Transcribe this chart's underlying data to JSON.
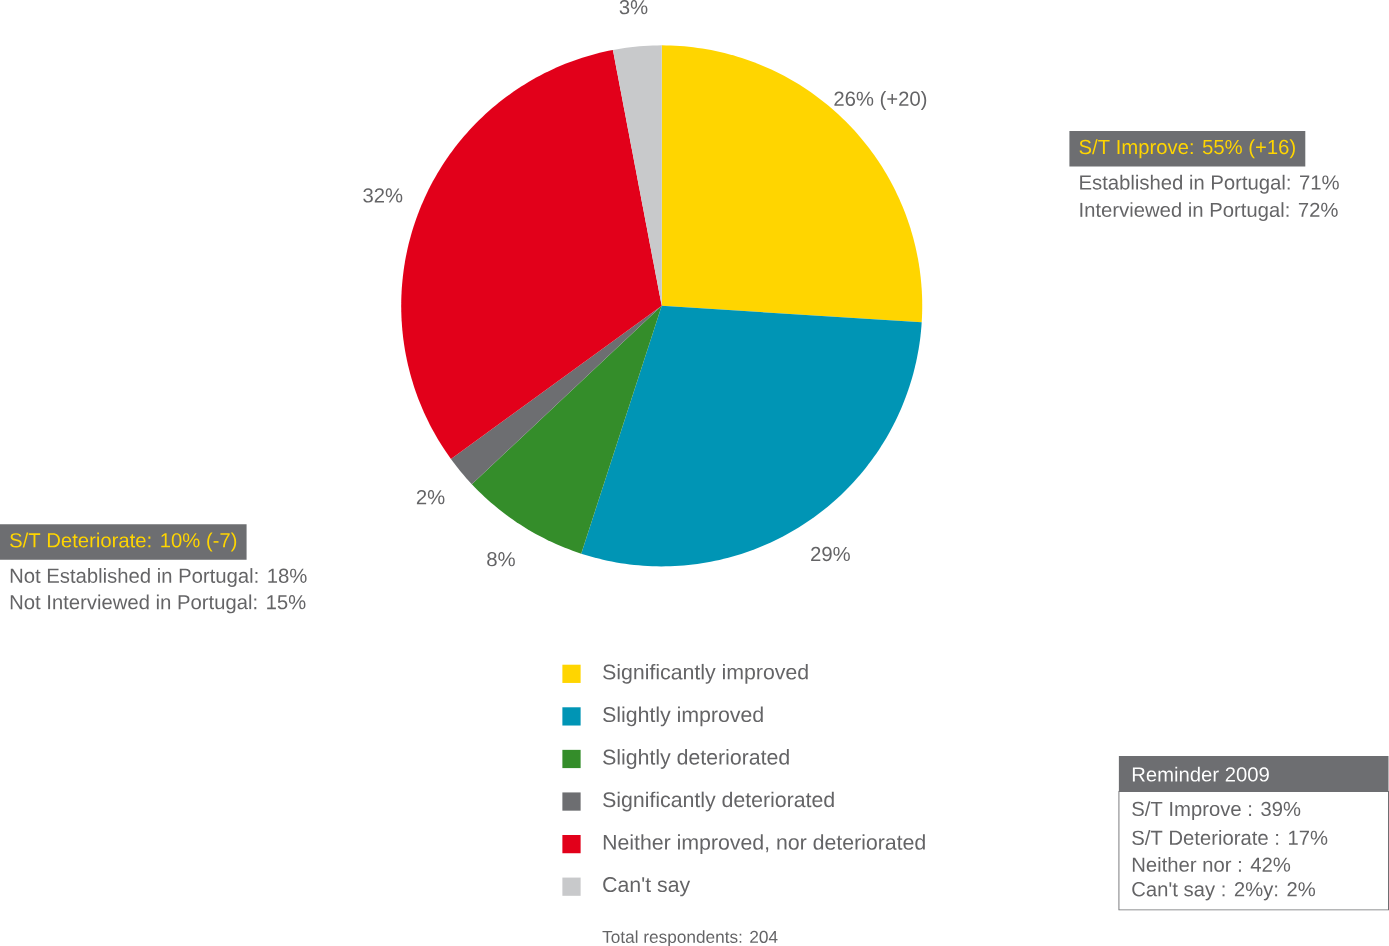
{
  "chart_data": {
    "type": "pie",
    "categories": [
      "Significantly improved",
      "Slightly improved",
      "Slightly deteriorated",
      "Significantly deteriorated",
      "Neither improved, nor deteriorated",
      "Can't say"
    ],
    "values": [
      26,
      29,
      8,
      2,
      32,
      3
    ],
    "value_labels": [
      "26% (+20)",
      "29%",
      "8%",
      "2%",
      "32%",
      "3%"
    ],
    "colors": [
      "#ffd500",
      "#0095b5",
      "#348d2a",
      "#6d6e71",
      "#e2001a",
      "#c8c9cb"
    ],
    "legend": "bottom",
    "annotations": [
      "S/T Improve: 55% (+16)",
      "Established in Portugal: 71%",
      "Interviewed in Portugal: 72%",
      "S/T Deteriorate: 10% (-7)",
      "Not Established in Portugal: 18%",
      "Not Interviewed in Portugal: 15%",
      "Reminder 2009",
      "S/T Improve : 39%",
      "S/T Deteriorate : 17%",
      "Neither nor : 42%",
      "Can't say : 2%y: 2%",
      "Total respondents: 204"
    ]
  }
}
